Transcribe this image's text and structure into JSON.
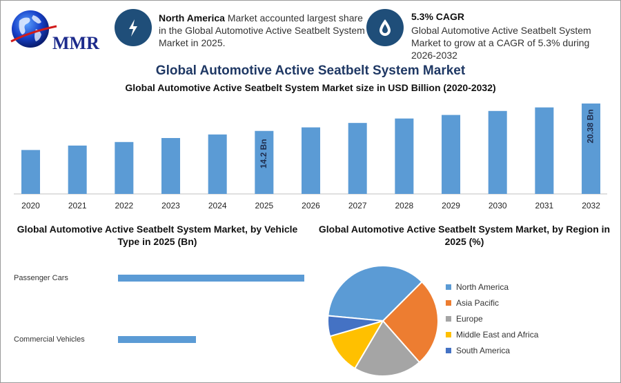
{
  "logo": {
    "text": "MMR",
    "icon": "globe-logo-icon"
  },
  "info_left": {
    "bold": "North America",
    "text": " Market accounted largest share in the Global Automotive Active Seatbelt System Market in 2025.",
    "icon": "lightning-icon"
  },
  "info_right": {
    "title": "5.3% CAGR",
    "text": "Global Automotive Active Seatbelt System Market to grow at a CAGR of 5.3% during 2026-2032",
    "icon": "drop-icon"
  },
  "main_title": "Global Automotive Active Seatbelt System Market",
  "colors": {
    "bar": "#5b9bd5",
    "badge": "#1f4e79",
    "title": "#1f3864"
  },
  "chart_data": [
    {
      "type": "bar",
      "title": "Global Automotive Active Seatbelt System Market size in USD Billion (2020-2032)",
      "categories": [
        "2020",
        "2021",
        "2022",
        "2023",
        "2024",
        "2025",
        "2026",
        "2027",
        "2028",
        "2029",
        "2030",
        "2031",
        "2032"
      ],
      "values": [
        9.9,
        10.9,
        11.7,
        12.6,
        13.4,
        14.2,
        15.0,
        16.0,
        17.0,
        17.8,
        18.7,
        19.5,
        20.38
      ],
      "data_labels": {
        "2025": "14.2 Bn",
        "2032": "20.38 Bn"
      },
      "ylim": [
        0,
        20.38
      ]
    },
    {
      "type": "bar",
      "orientation": "horizontal",
      "title": "Global Automotive Active Seatbelt System Market, by Vehicle Type in 2025 (Bn)",
      "categories": [
        "Passenger Cars",
        "Commercial Vehicles"
      ],
      "values": [
        10.0,
        4.2
      ],
      "xlim": [
        0,
        10.0
      ]
    },
    {
      "type": "pie",
      "title": "Global Automotive Active Seatbelt System Market, by Region in 2025 (%)",
      "labels": [
        "North America",
        "Asia Pacific",
        "Europe",
        "Middle East and Africa",
        "South America"
      ],
      "values": [
        36,
        26,
        20,
        12,
        6
      ],
      "colors": [
        "#5b9bd5",
        "#ed7d31",
        "#a5a5a5",
        "#ffc000",
        "#4472c4"
      ]
    }
  ]
}
